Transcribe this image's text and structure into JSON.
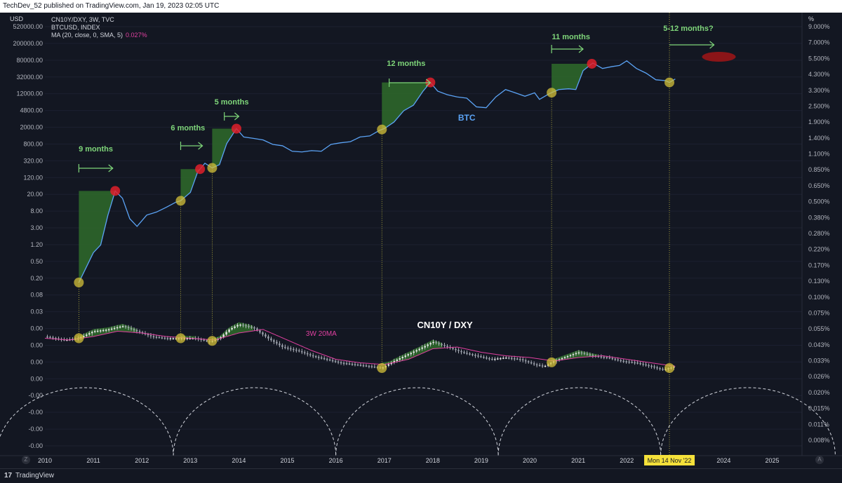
{
  "header": {
    "published": "TechDev_52 published on TradingView.com, Jan 19, 2023 02:05 UTC"
  },
  "footer": {
    "brand": "TradingView",
    "logo": "17",
    "zoom_button": "Z",
    "auto_button": "A"
  },
  "chart_data": {
    "type": "line",
    "currency_label": "USD",
    "percent_label": "%",
    "legend": [
      "CN10Y/DXY, 3W, TVC",
      "BTCUSD, INDEX",
      "MA (20, close, 0, SMA, 5)"
    ],
    "ma_value": "0.027%",
    "left_ticks": [
      "520000.00",
      "200000.00",
      "80000.00",
      "32000.00",
      "12000.00",
      "4800.00",
      "2000.00",
      "800.00",
      "320.00",
      "120.00",
      "20.00",
      "8.00",
      "3.00",
      "1.20",
      "0.50",
      "0.20",
      "0.08",
      "0.03",
      "0.00",
      "0.00",
      "0.00",
      "0.00",
      "-0.00",
      "-0.00",
      "-0.00",
      "-0.00"
    ],
    "right_ticks": [
      "9.000%",
      "7.000%",
      "5.500%",
      "4.300%",
      "3.300%",
      "2.500%",
      "1.900%",
      "1.400%",
      "1.100%",
      "0.850%",
      "0.650%",
      "0.500%",
      "0.380%",
      "0.280%",
      "0.220%",
      "0.170%",
      "0.130%",
      "0.100%",
      "0.075%",
      "0.055%",
      "0.043%",
      "0.033%",
      "0.026%",
      "0.020%",
      "0.015%",
      "0.011%",
      "0.008%"
    ],
    "x_ticks": [
      "2010",
      "2011",
      "2012",
      "2013",
      "2014",
      "2015",
      "2016",
      "2017",
      "2018",
      "2019",
      "2020",
      "2021",
      "2022",
      "2024",
      "2025"
    ],
    "cursor_label": "Mon 14 Nov '22",
    "annotations": {
      "cycle_labels": [
        "9 months",
        "6 months",
        "5 months",
        "12 months",
        "11 months",
        "5-12 months?"
      ],
      "btc_label": "BTC",
      "macro_label": "CN10Y / DXY",
      "ma_label": "3W 20MA"
    },
    "btc_series": {
      "name": "BTC",
      "x": [
        2010.7,
        2010.85,
        2011.0,
        2011.15,
        2011.3,
        2011.45,
        2011.6,
        2011.75,
        2011.9,
        2012.1,
        2012.3,
        2012.5,
        2012.7,
        2012.8,
        2013.0,
        2013.15,
        2013.3,
        2013.45,
        2013.6,
        2013.75,
        2013.95,
        2014.1,
        2014.3,
        2014.5,
        2014.7,
        2014.9,
        2015.1,
        2015.3,
        2015.5,
        2015.7,
        2015.9,
        2016.1,
        2016.3,
        2016.5,
        2016.7,
        2016.9,
        2017.0,
        2017.2,
        2017.4,
        2017.6,
        2017.8,
        2017.95,
        2018.1,
        2018.3,
        2018.5,
        2018.7,
        2018.9,
        2019.1,
        2019.3,
        2019.5,
        2019.7,
        2019.9,
        2020.1,
        2020.2,
        2020.4,
        2020.6,
        2020.8,
        2020.95,
        2021.1,
        2021.3,
        2021.5,
        2021.7,
        2021.85,
        2022.0,
        2022.2,
        2022.4,
        2022.6,
        2022.8,
        2022.88,
        2023.0
      ],
      "y": [
        0.08,
        0.2,
        0.5,
        0.8,
        5,
        22,
        14,
        4,
        2.5,
        5,
        6,
        8,
        11,
        12,
        20,
        70,
        120,
        90,
        110,
        400,
        1000,
        600,
        550,
        500,
        380,
        350,
        250,
        240,
        260,
        250,
        380,
        420,
        450,
        600,
        640,
        900,
        1000,
        1500,
        3000,
        4200,
        10000,
        17000,
        10000,
        8000,
        7000,
        6500,
        3800,
        3600,
        7000,
        11000,
        9000,
        7300,
        9000,
        6000,
        8500,
        11000,
        11500,
        11000,
        35000,
        56000,
        40000,
        45000,
        48000,
        64000,
        40000,
        30000,
        20000,
        19000,
        17000,
        21000
      ]
    },
    "macro_series": {
      "name": "CN10Y / DXY",
      "x": [
        2010.0,
        2010.4,
        2010.7,
        2011.0,
        2011.3,
        2011.6,
        2011.9,
        2012.2,
        2012.5,
        2012.8,
        2013.1,
        2013.4,
        2013.6,
        2013.8,
        2014.0,
        2014.3,
        2014.6,
        2014.9,
        2015.2,
        2015.5,
        2015.8,
        2016.1,
        2016.4,
        2016.7,
        2016.95,
        2017.2,
        2017.5,
        2017.8,
        2018.0,
        2018.3,
        2018.6,
        2018.9,
        2019.2,
        2019.5,
        2019.8,
        2020.1,
        2020.3,
        2020.5,
        2020.8,
        2021.0,
        2021.3,
        2021.6,
        2021.9,
        2022.2,
        2022.5,
        2022.75,
        2022.88,
        2023.0
      ],
      "y": [
        0.044,
        0.042,
        0.043,
        0.047,
        0.048,
        0.05,
        0.047,
        0.044,
        0.043,
        0.043,
        0.043,
        0.041,
        0.043,
        0.048,
        0.051,
        0.049,
        0.043,
        0.038,
        0.036,
        0.033,
        0.031,
        0.029,
        0.028,
        0.027,
        0.026,
        0.03,
        0.034,
        0.038,
        0.041,
        0.038,
        0.035,
        0.033,
        0.031,
        0.032,
        0.031,
        0.028,
        0.027,
        0.03,
        0.033,
        0.035,
        0.033,
        0.032,
        0.03,
        0.029,
        0.027,
        0.025,
        0.026,
        0.027
      ]
    },
    "ma_series": {
      "name": "3W 20MA",
      "x": [
        2010.0,
        2010.5,
        2011.0,
        2011.5,
        2012.0,
        2012.5,
        2013.0,
        2013.5,
        2014.0,
        2014.5,
        2015.0,
        2015.5,
        2016.0,
        2016.5,
        2017.0,
        2017.5,
        2018.0,
        2018.5,
        2019.0,
        2019.5,
        2020.0,
        2020.5,
        2021.0,
        2021.5,
        2022.0,
        2022.5,
        2023.0
      ],
      "y": [
        0.043,
        0.042,
        0.044,
        0.047,
        0.046,
        0.044,
        0.043,
        0.042,
        0.046,
        0.048,
        0.042,
        0.036,
        0.031,
        0.029,
        0.028,
        0.031,
        0.037,
        0.038,
        0.035,
        0.033,
        0.032,
        0.03,
        0.032,
        0.033,
        0.031,
        0.029,
        0.027
      ]
    },
    "bull_cycles": [
      {
        "start": 2010.7,
        "top": 2011.45,
        "label": "9 months"
      },
      {
        "start": 2012.8,
        "top": 2013.2,
        "label": "6 months"
      },
      {
        "start": 2013.45,
        "top": 2013.95,
        "label": "5 months"
      },
      {
        "start": 2016.95,
        "top": 2017.95,
        "label": "12 months"
      },
      {
        "start": 2020.45,
        "top": 2021.28,
        "label": "11 months"
      }
    ],
    "current_signal": 2022.88,
    "projected_top": 2023.9,
    "cycle_arcs": [
      2012.65,
      2016.0,
      2019.35,
      2022.7
    ]
  }
}
